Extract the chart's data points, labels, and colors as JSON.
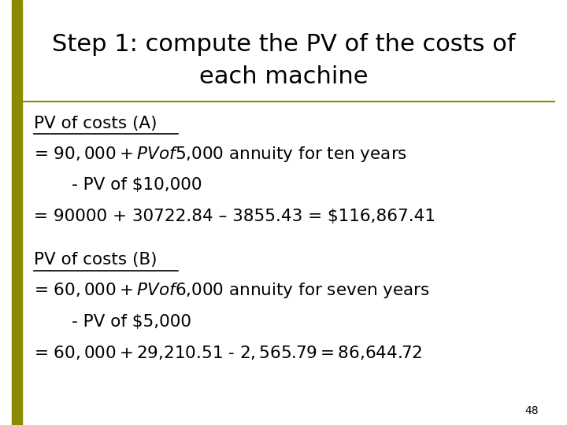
{
  "title_line1": "Step 1: compute the PV of the costs of",
  "title_line2": "each machine",
  "bg_color": "#ffffff",
  "title_color": "#000000",
  "text_color": "#000000",
  "left_bar_color": "#8B8B00",
  "title_fontsize": 22,
  "body_fontsize": 15.5,
  "page_number": "48",
  "section_A_label": "PV of costs (A)",
  "section_A_line1": "= $90,000 + PV of $5,000 annuity for ten years",
  "section_A_line2": "       - PV of $10,000",
  "section_A_line3": "= 90000 + 30722.84 – 3855.43 = $116,867.41",
  "section_B_label": "PV of costs (B)",
  "section_B_line1": "= $60,000 + PV of $6,000 annuity for seven years",
  "section_B_line2": "       - PV of $5,000",
  "section_B_line3": "= $60,000 + $29,210.51 - $2,565.79 =$86,644.72"
}
